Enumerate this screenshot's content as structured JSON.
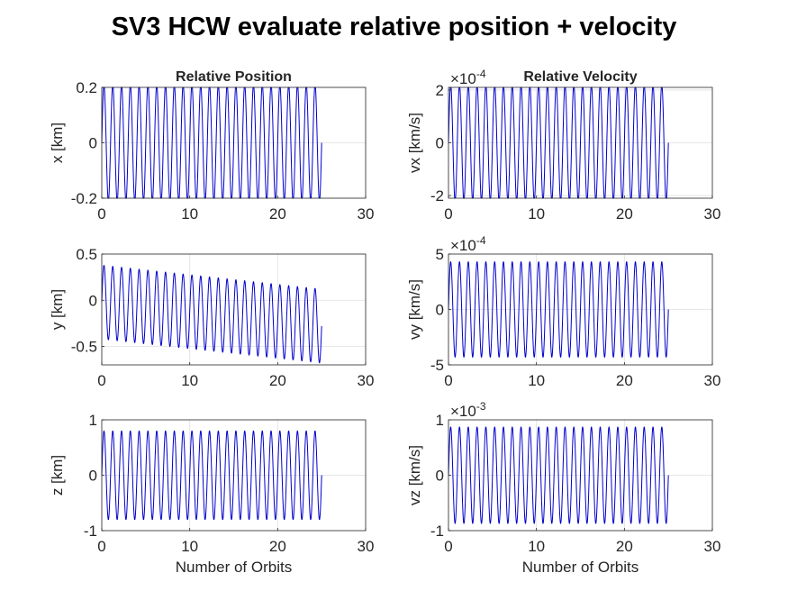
{
  "figure": {
    "title": "SV3 HCW evaluate relative position + velocity"
  },
  "chart_data": [
    {
      "type": "line",
      "id": "x",
      "title": "Relative Position",
      "xlabel": "",
      "ylabel": "x [km]",
      "xlim": [
        0,
        30
      ],
      "ylim": [
        -0.2,
        0.2
      ],
      "xticks": [
        "0",
        "10",
        "20",
        "30"
      ],
      "yticks": [
        "-0.2",
        "0",
        "0.2"
      ],
      "exponent": "",
      "grid": true,
      "color": "#0000cc",
      "signal": {
        "x_end": 25,
        "cycles": 25,
        "offset_start": 0.0,
        "offset_end": 0.0,
        "amplitude": 0.21,
        "clip": 0.2
      }
    },
    {
      "type": "line",
      "id": "vx",
      "title": "Relative Velocity",
      "xlabel": "",
      "ylabel": "vx [km/s]",
      "xlim": [
        0,
        30
      ],
      "ylim": [
        -2.1,
        2.1
      ],
      "xticks": [
        "0",
        "10",
        "20",
        "30"
      ],
      "yticks": [
        "-2",
        "0",
        "2"
      ],
      "exponent": "-4",
      "grid": true,
      "color": "#0000cc",
      "signal": {
        "x_end": 25,
        "cycles": 25,
        "offset_start": 0.0,
        "offset_end": 0.0,
        "amplitude": 2.2,
        "clip": 2.1
      }
    },
    {
      "type": "line",
      "id": "y",
      "title": "",
      "xlabel": "",
      "ylabel": "y [km]",
      "xlim": [
        0,
        30
      ],
      "ylim": [
        -0.7,
        0.5
      ],
      "xticks": [
        "0",
        "10",
        "20",
        "30"
      ],
      "yticks": [
        "-0.5",
        "0",
        "0.5"
      ],
      "exponent": "",
      "grid": true,
      "color": "#0000cc",
      "signal": {
        "x_end": 25,
        "cycles": 25,
        "offset_start": -0.02,
        "offset_end": -0.28,
        "amplitude": 0.4,
        "clip": 0.7
      }
    },
    {
      "type": "line",
      "id": "vy",
      "title": "",
      "xlabel": "",
      "ylabel": "vy [km/s]",
      "xlim": [
        0,
        30
      ],
      "ylim": [
        -5,
        5
      ],
      "xticks": [
        "0",
        "10",
        "20",
        "30"
      ],
      "yticks": [
        "-5",
        "0",
        "5"
      ],
      "exponent": "-4",
      "grid": true,
      "color": "#0000cc",
      "signal": {
        "x_end": 25,
        "cycles": 25,
        "offset_start": 0.0,
        "offset_end": 0.0,
        "amplitude": 4.3,
        "clip": 5
      }
    },
    {
      "type": "line",
      "id": "z",
      "title": "",
      "xlabel": "Number of Orbits",
      "ylabel": "z [km]",
      "xlim": [
        0,
        30
      ],
      "ylim": [
        -1,
        1
      ],
      "xticks": [
        "0",
        "10",
        "20",
        "30"
      ],
      "yticks": [
        "-1",
        "0",
        "1"
      ],
      "exponent": "",
      "grid": true,
      "color": "#0000cc",
      "signal": {
        "x_end": 25,
        "cycles": 25,
        "offset_start": 0.0,
        "offset_end": 0.0,
        "amplitude": 0.8,
        "clip": 1
      }
    },
    {
      "type": "line",
      "id": "vz",
      "title": "",
      "xlabel": "Number of Orbits",
      "ylabel": "vz [km/s]",
      "xlim": [
        0,
        30
      ],
      "ylim": [
        -1,
        1
      ],
      "xticks": [
        "0",
        "10",
        "20",
        "30"
      ],
      "yticks": [
        "-1",
        "0",
        "1"
      ],
      "exponent": "-3",
      "grid": true,
      "color": "#0000cc",
      "signal": {
        "x_end": 25,
        "cycles": 25,
        "offset_start": 0.0,
        "offset_end": 0.0,
        "amplitude": 0.87,
        "clip": 1
      }
    }
  ]
}
